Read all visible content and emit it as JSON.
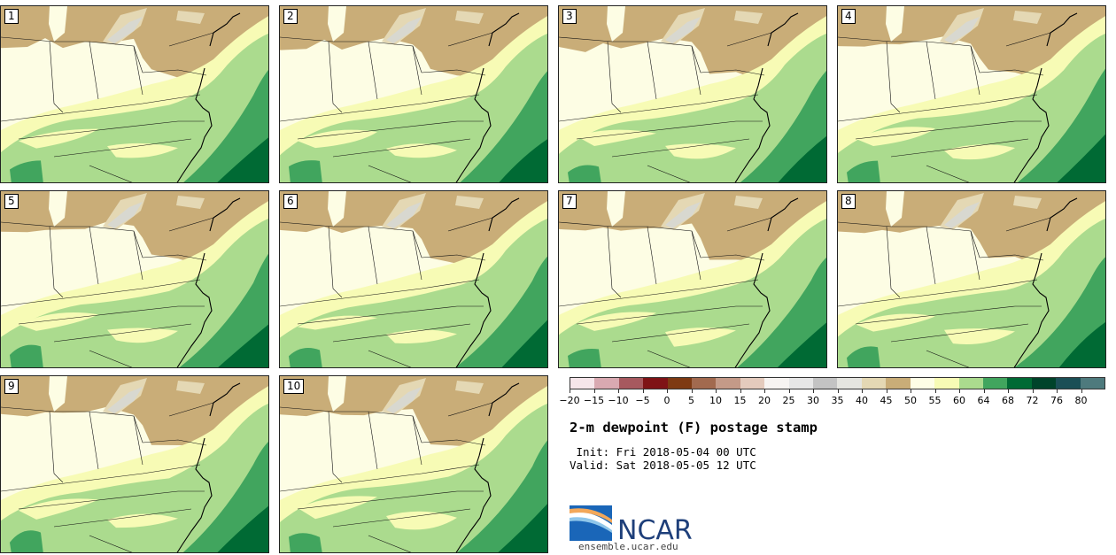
{
  "panels": [
    {
      "label": "1"
    },
    {
      "label": "2"
    },
    {
      "label": "3"
    },
    {
      "label": "4"
    },
    {
      "label": "5"
    },
    {
      "label": "6"
    },
    {
      "label": "7"
    },
    {
      "label": "8"
    },
    {
      "label": "9"
    },
    {
      "label": "10"
    }
  ],
  "colorbar": {
    "colors": [
      "#f6e6ea",
      "#d9a9b1",
      "#a7595f",
      "#7f1316",
      "#7e3a13",
      "#a26a4f",
      "#c49a88",
      "#e4cbbd",
      "#f7f4f2",
      "#e7e7e7",
      "#c3c3c3",
      "#e5e5e0",
      "#e4d8b4",
      "#c9ad78",
      "#fefee6",
      "#f7fbb5",
      "#abdb8e",
      "#41a55e",
      "#006a34",
      "#00432a",
      "#1b4f56",
      "#4e7a7d"
    ],
    "ticks": [
      "−20",
      "−15",
      "−10",
      "−5",
      "0",
      "5",
      "10",
      "15",
      "20",
      "25",
      "30",
      "35",
      "40",
      "45",
      "50",
      "55",
      "60",
      "64",
      "68",
      "72",
      "76",
      "80"
    ]
  },
  "title": "2-m dewpoint (F) postage stamp",
  "init_text": " Init: Fri 2018-05-04 00 UTC",
  "valid_text": "Valid: Sat 2018-05-05 12 UTC",
  "logo": {
    "text": "NCAR",
    "blue": "#1a66b8"
  },
  "url": "ensemble.ucar.edu"
}
